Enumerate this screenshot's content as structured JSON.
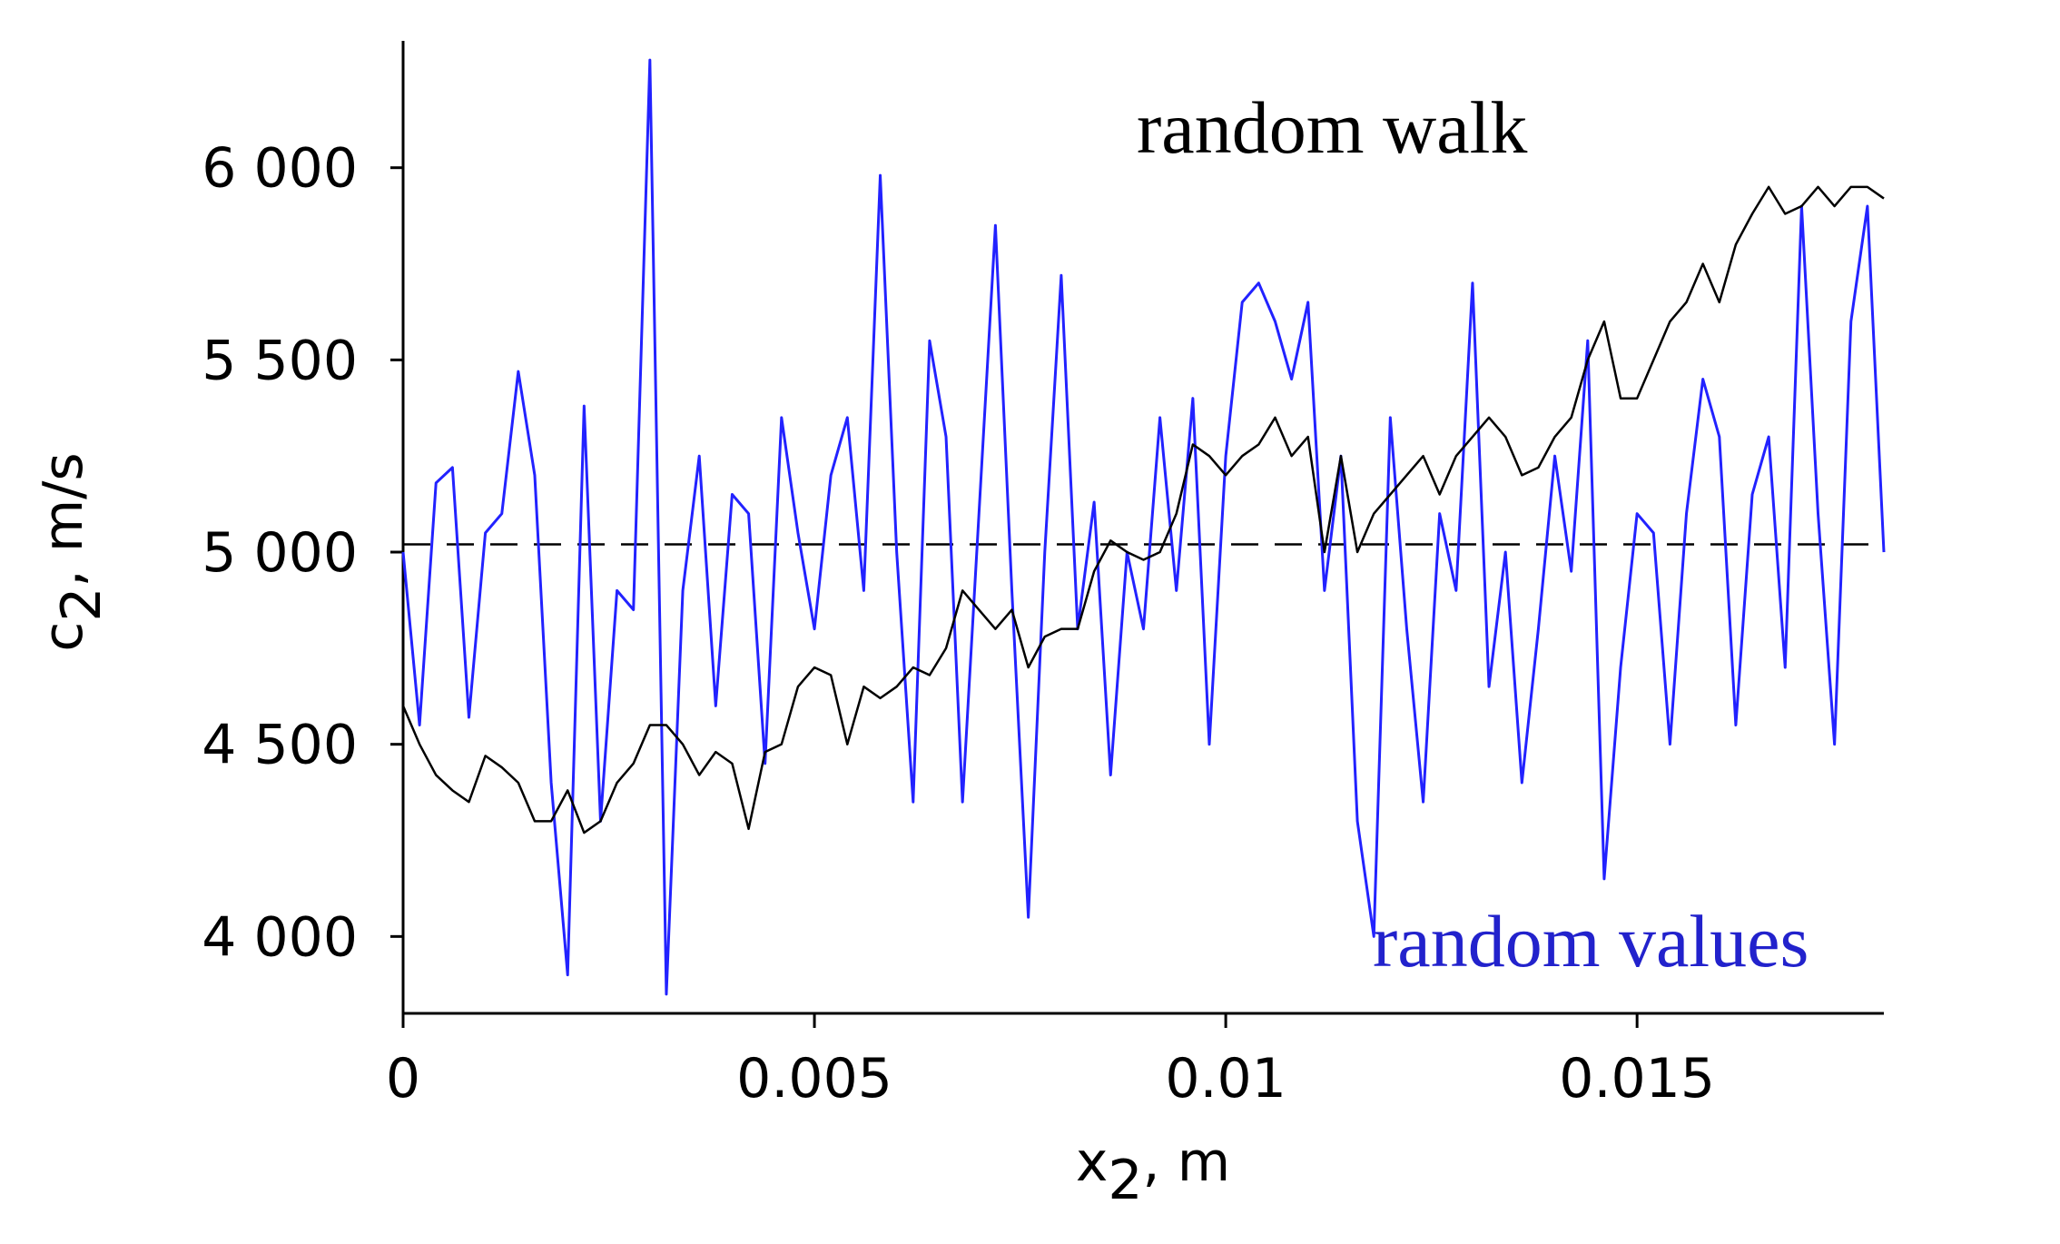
{
  "chart_data": {
    "type": "line",
    "xlabel": [
      "x",
      "2",
      ", m"
    ],
    "ylabel": [
      "c",
      "2",
      ", m/s"
    ],
    "xlim": [
      0,
      0.018
    ],
    "ylim": [
      3800,
      6330
    ],
    "xticks": [
      0,
      0.005,
      0.01,
      0.015
    ],
    "yticks": [
      {
        "value": 4000,
        "label": "4 000"
      },
      {
        "value": 4500,
        "label": "4 500"
      },
      {
        "value": 5000,
        "label": "5 000"
      },
      {
        "value": 5500,
        "label": "5 500"
      },
      {
        "value": 6000,
        "label": "6 000"
      }
    ],
    "hline": 5020,
    "x": [
      0,
      0.0002,
      0.0004,
      0.0006,
      0.0008,
      0.001,
      0.0012,
      0.0014,
      0.0016,
      0.0018,
      0.002,
      0.0022,
      0.0024,
      0.0026,
      0.0028,
      0.003,
      0.0032,
      0.0034,
      0.0036,
      0.0038,
      0.004,
      0.0042,
      0.0044,
      0.0046,
      0.0048,
      0.005,
      0.0052,
      0.0054,
      0.0056,
      0.0058,
      0.006,
      0.0062,
      0.0064,
      0.0066,
      0.0068,
      0.007,
      0.0072,
      0.0074,
      0.0076,
      0.0078,
      0.008,
      0.0082,
      0.0084,
      0.0086,
      0.0088,
      0.009,
      0.0092,
      0.0094,
      0.0096,
      0.0098,
      0.01,
      0.0102,
      0.0104,
      0.0106,
      0.0108,
      0.011,
      0.0112,
      0.0114,
      0.0116,
      0.0118,
      0.012,
      0.0122,
      0.0124,
      0.0126,
      0.0128,
      0.013,
      0.0132,
      0.0134,
      0.0136,
      0.0138,
      0.014,
      0.0142,
      0.0144,
      0.0146,
      0.0148,
      0.015,
      0.0152,
      0.0154,
      0.0156,
      0.0158,
      0.016,
      0.0162,
      0.0164,
      0.0166,
      0.0168,
      0.017,
      0.0172,
      0.0174,
      0.0176,
      0.0178,
      0.018
    ],
    "series": [
      {
        "name": "random values",
        "color": "#2222ff",
        "values": [
          5000,
          4550,
          5180,
          5220,
          4570,
          5050,
          5100,
          5470,
          5200,
          4400,
          3900,
          5380,
          4300,
          4900,
          4850,
          6280,
          3850,
          4900,
          5250,
          4600,
          5150,
          5100,
          4450,
          5350,
          5050,
          4800,
          5200,
          5350,
          4900,
          5980,
          5000,
          4350,
          5550,
          5300,
          4350,
          5100,
          5850,
          4900,
          4050,
          5000,
          5720,
          4800,
          5130,
          4420,
          5000,
          4800,
          5350,
          4900,
          5400,
          4500,
          5250,
          5650,
          5700,
          5600,
          5450,
          5650,
          4900,
          5250,
          4300,
          4000,
          5350,
          4800,
          4350,
          5100,
          4900,
          5700,
          4650,
          5000,
          4400,
          4800,
          5250,
          4950,
          5550,
          4150,
          4700,
          5100,
          5050,
          4500,
          5100,
          5450,
          5300,
          4550,
          5150,
          5300,
          4700,
          5900,
          5100,
          4500,
          5600,
          5900,
          5000
        ]
      },
      {
        "name": "random walk",
        "color": "#000000",
        "values": [
          4600,
          4500,
          4420,
          4380,
          4350,
          4470,
          4440,
          4400,
          4300,
          4300,
          4380,
          4270,
          4300,
          4400,
          4450,
          4550,
          4550,
          4500,
          4420,
          4480,
          4450,
          4280,
          4480,
          4500,
          4650,
          4700,
          4680,
          4500,
          4650,
          4620,
          4650,
          4700,
          4680,
          4750,
          4900,
          4850,
          4800,
          4850,
          4700,
          4780,
          4800,
          4800,
          4950,
          5030,
          5000,
          4980,
          5000,
          5100,
          5280,
          5250,
          5200,
          5250,
          5280,
          5350,
          5250,
          5300,
          5000,
          5250,
          5000,
          5100,
          5150,
          5200,
          5250,
          5150,
          5250,
          5300,
          5350,
          5300,
          5200,
          5220,
          5300,
          5350,
          5500,
          5600,
          5400,
          5400,
          5500,
          5600,
          5650,
          5750,
          5650,
          5800,
          5880,
          5950,
          5880,
          5900,
          5950,
          5900,
          5950,
          5950,
          5920
        ]
      }
    ]
  }
}
